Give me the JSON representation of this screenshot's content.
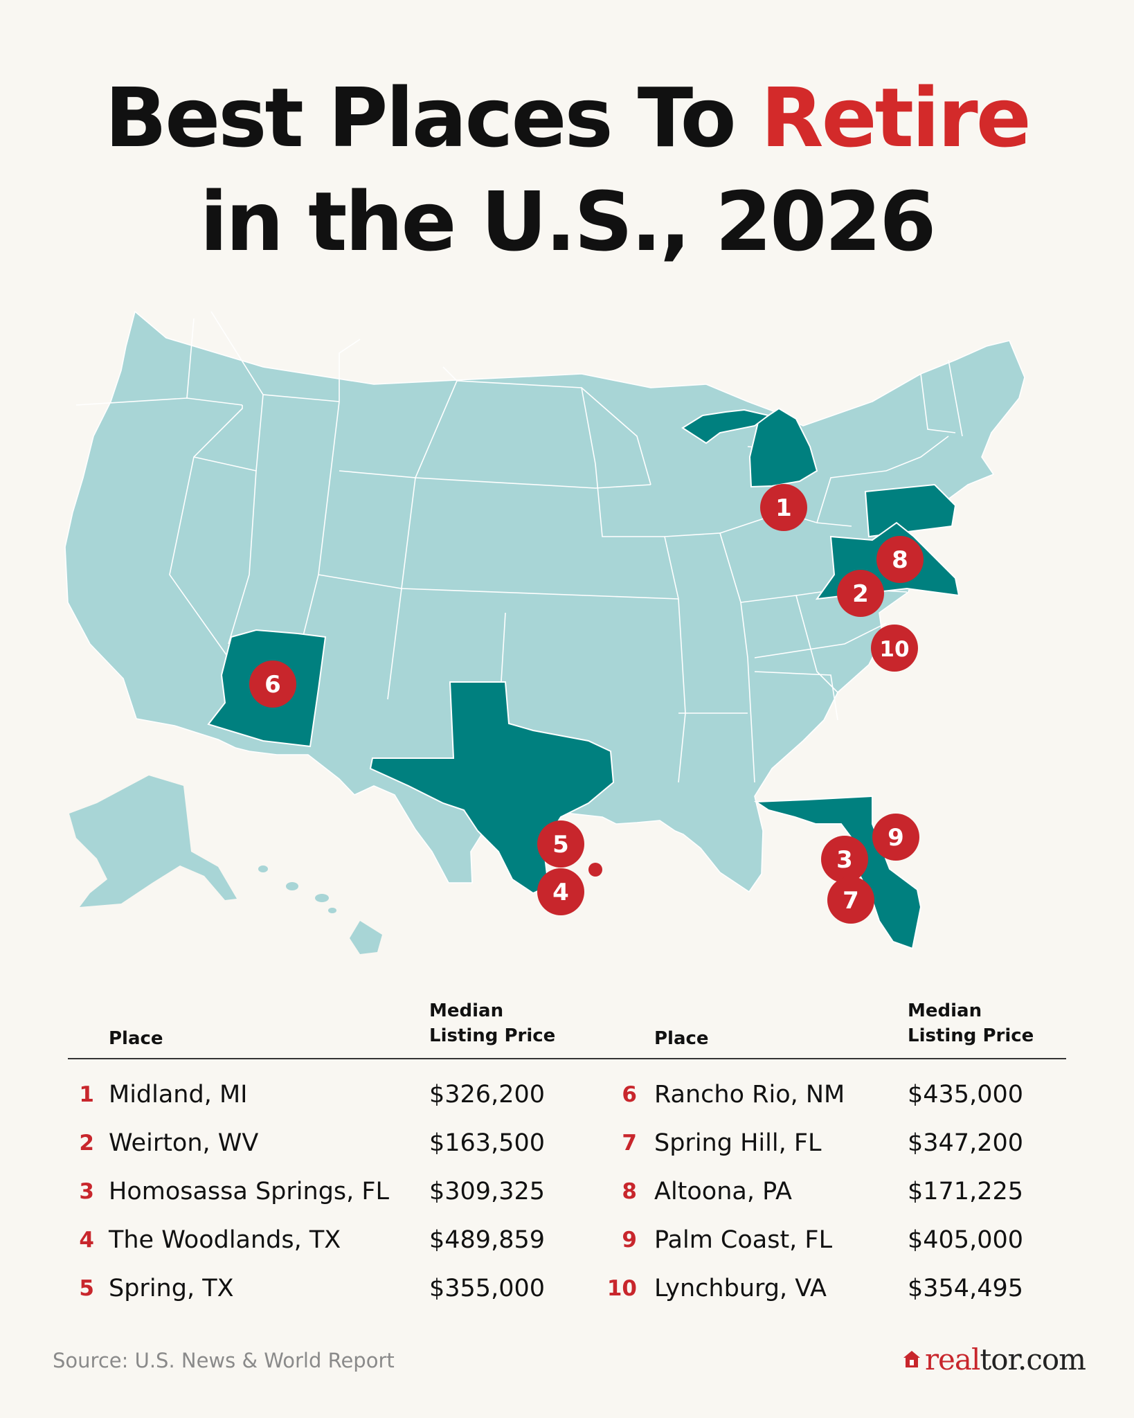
{
  "title": {
    "line1_plain": "Best Places To ",
    "line1_accent": "Retire",
    "line2": "in the U.S., 2026"
  },
  "colors": {
    "accent": "#d32a2a",
    "map_base": "#a8d5d6",
    "map_highlight": "#00807f",
    "marker": "#c8262c"
  },
  "markers": [
    "1",
    "2",
    "3",
    "4",
    "5",
    "6",
    "7",
    "8",
    "9",
    "10"
  ],
  "table": {
    "headers": {
      "place": "Place",
      "price_line1": "Median",
      "price_line2": "Listing Price"
    },
    "left": [
      {
        "rank": "1",
        "place": "Midland, MI",
        "price": "$326,200"
      },
      {
        "rank": "2",
        "place": "Weirton, WV",
        "price": "$163,500"
      },
      {
        "rank": "3",
        "place": "Homosassa Springs, FL",
        "price": "$309,325"
      },
      {
        "rank": "4",
        "place": "The Woodlands, TX",
        "price": "$489,859"
      },
      {
        "rank": "5",
        "place": "Spring, TX",
        "price": "$355,000"
      }
    ],
    "right": [
      {
        "rank": "6",
        "place": "Rancho Rio, NM",
        "price": "$435,000"
      },
      {
        "rank": "7",
        "place": "Spring Hill, FL",
        "price": "$347,200"
      },
      {
        "rank": "8",
        "place": "Altoona, PA",
        "price": "$171,225"
      },
      {
        "rank": "9",
        "place": "Palm Coast, FL",
        "price": "$405,000"
      },
      {
        "rank": "10",
        "place": "Lynchburg, VA",
        "price": "$354,495"
      }
    ]
  },
  "source": "Source: U.S. News & World Report",
  "logo": {
    "part1": "real",
    "part2": "tor.com"
  }
}
